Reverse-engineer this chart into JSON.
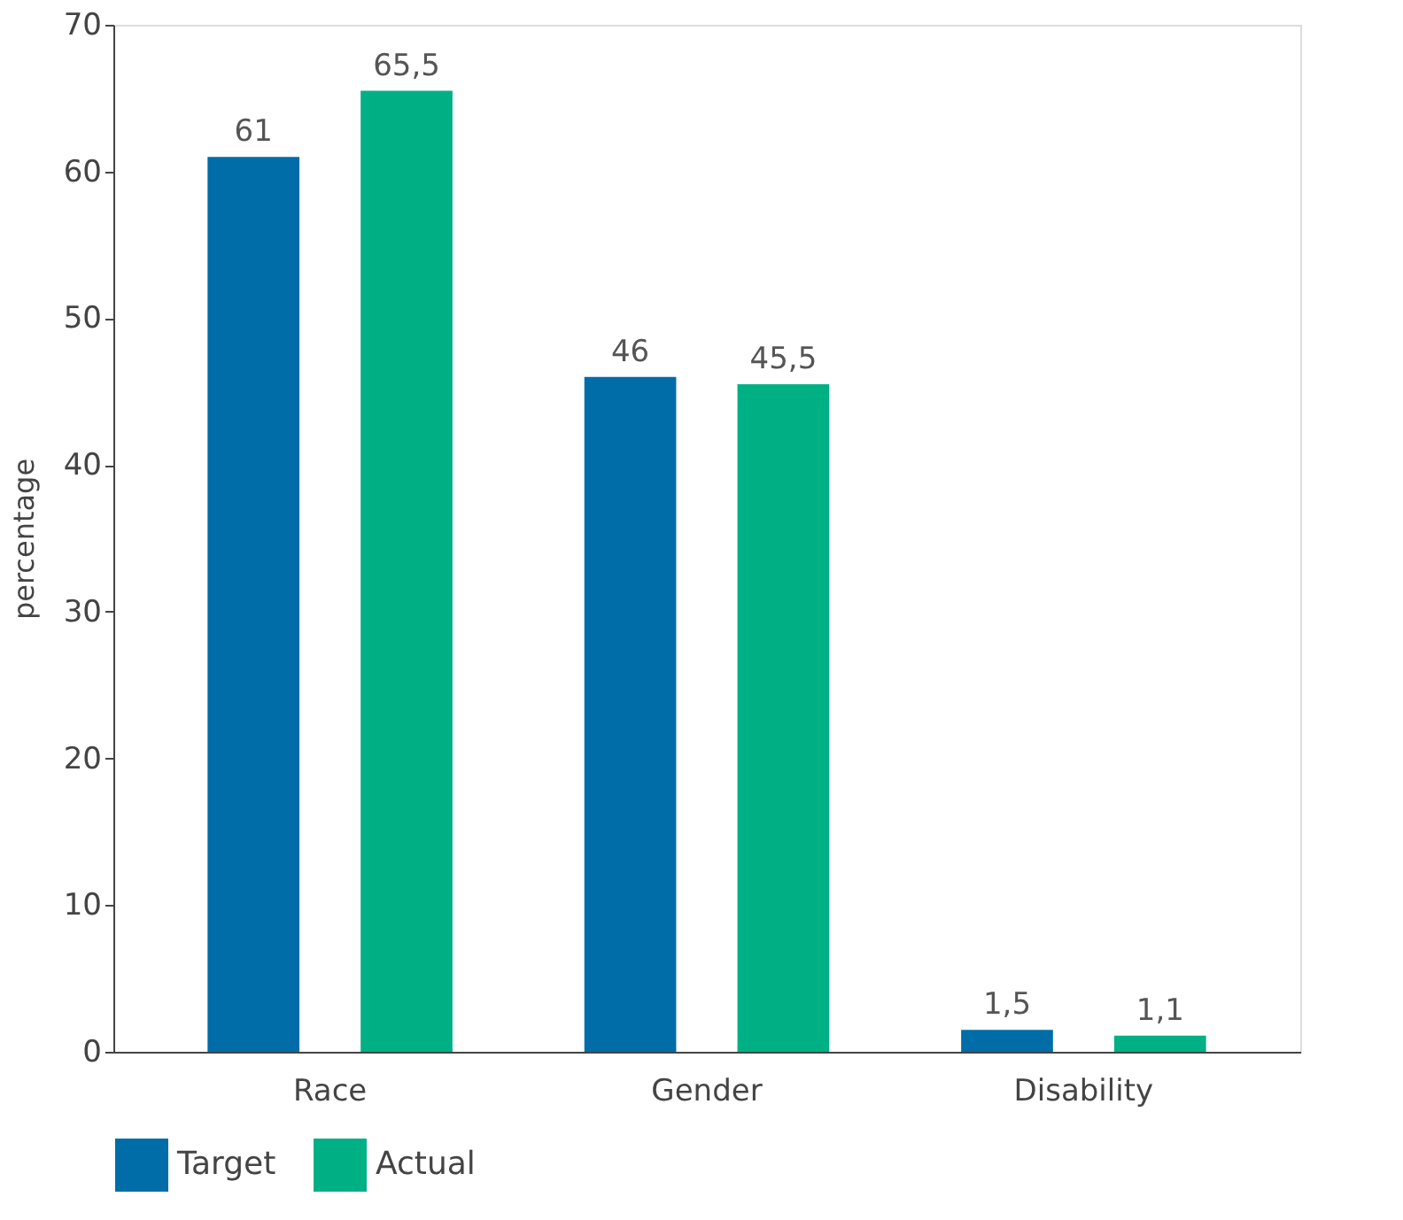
{
  "chart_data": {
    "type": "bar",
    "ylabel": "percentage",
    "categories": [
      "Race",
      "Gender",
      "Disability"
    ],
    "series": [
      {
        "name": "Target",
        "color": "#006ca8",
        "values": [
          61,
          46,
          1.5
        ],
        "value_labels": [
          "61",
          "46",
          "1,5"
        ]
      },
      {
        "name": "Actual",
        "color": "#00b085",
        "values": [
          65.5,
          45.5,
          1.1
        ],
        "value_labels": [
          "65,5",
          "45,5",
          "1,1"
        ]
      }
    ],
    "ylim": [
      0,
      70
    ],
    "yticks": [
      0,
      10,
      20,
      30,
      40,
      50,
      60,
      70
    ],
    "grid": false,
    "legend": "bottom"
  }
}
